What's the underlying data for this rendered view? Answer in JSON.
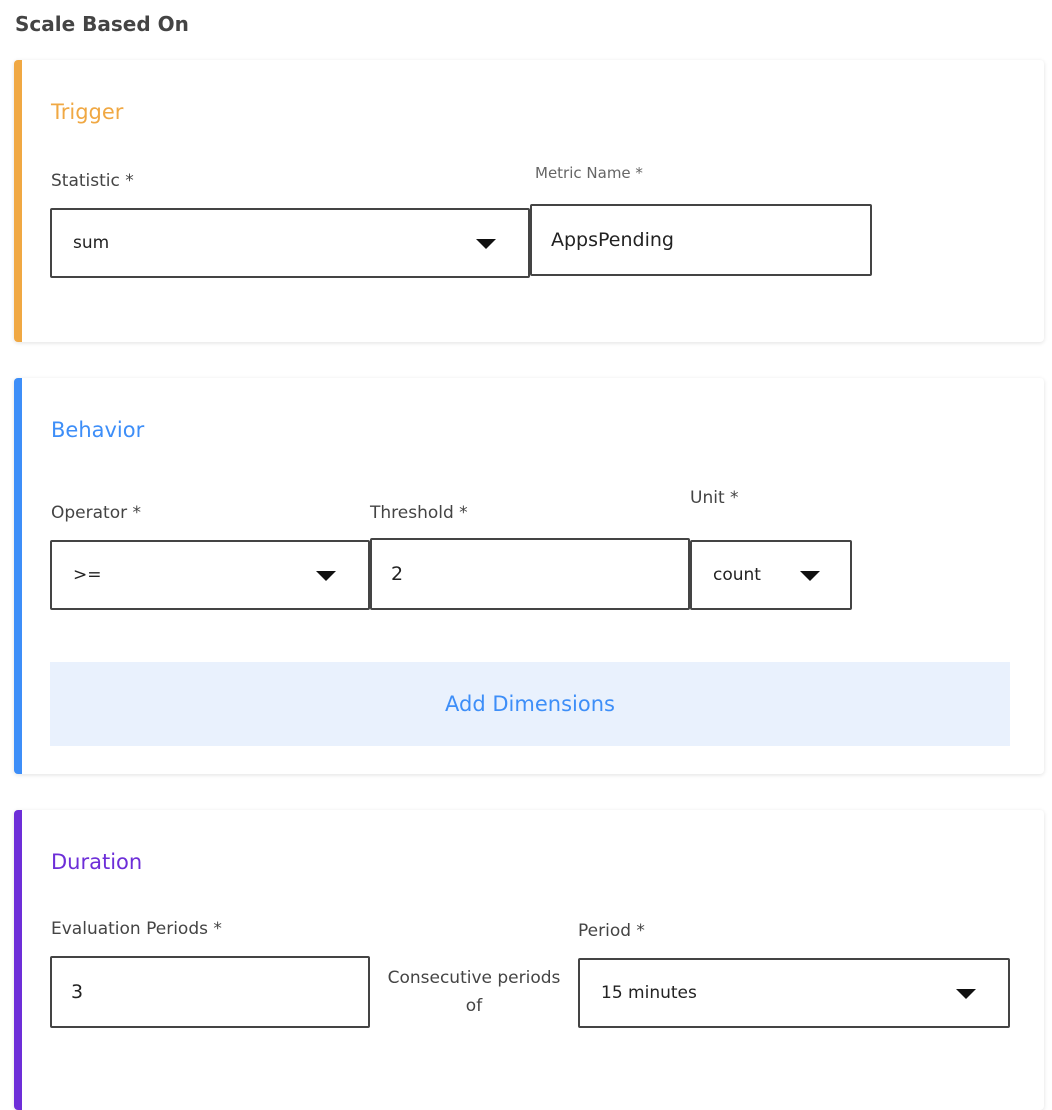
{
  "section_title": "Scale Based On",
  "colors": {
    "trigger": "#f0a843",
    "behavior": "#3d8ef8",
    "duration": "#6d2ed8",
    "add_dimensions_bg": "#e9f1fd"
  },
  "trigger": {
    "title": "Trigger",
    "statistic_label": "Statistic *",
    "statistic_value": "sum",
    "metric_name_label": "Metric Name *",
    "metric_name_value": "AppsPending"
  },
  "behavior": {
    "title": "Behavior",
    "operator_label": "Operator *",
    "operator_value": ">=",
    "threshold_label": "Threshold *",
    "threshold_value": "2",
    "unit_label": "Unit *",
    "unit_value": "count",
    "add_dimensions": "Add Dimensions"
  },
  "duration": {
    "title": "Duration",
    "evaluation_periods_label": "Evaluation Periods *",
    "evaluation_periods_value": "3",
    "consecutive_text": "Consecutive periods of",
    "period_label": "Period *",
    "period_value": "15 minutes"
  }
}
